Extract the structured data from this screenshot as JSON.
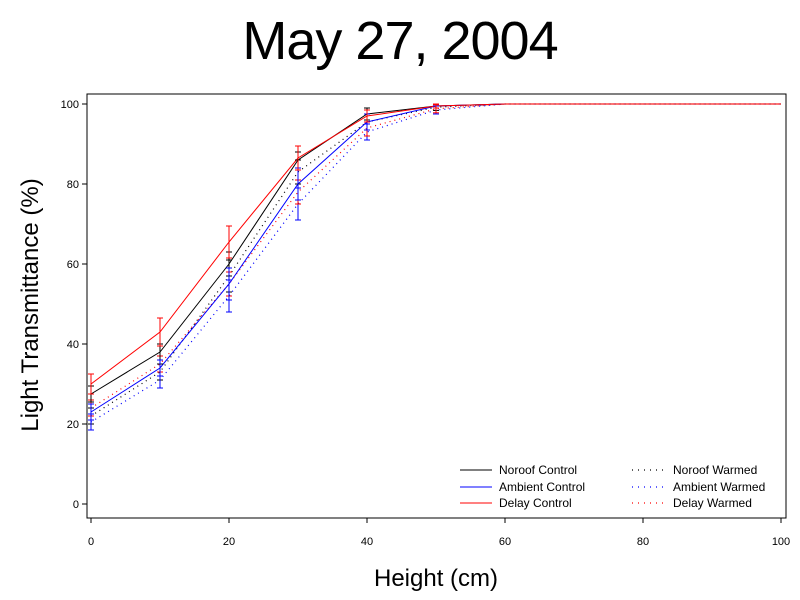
{
  "chart_data": {
    "type": "line",
    "title": "May 27, 2004",
    "xlabel": "Height (cm)",
    "ylabel": "Light Transmittance (%)",
    "xlim": [
      0,
      100
    ],
    "ylim": [
      0,
      100
    ],
    "xticks": [
      "0",
      "20",
      "40",
      "60",
      "80",
      "100"
    ],
    "yticks": [
      "0",
      "20",
      "40",
      "60",
      "80",
      "100"
    ],
    "grid": false,
    "legend_position": "bottom-right",
    "x": [
      0,
      10,
      20,
      30,
      40,
      50,
      60,
      70,
      80,
      90,
      100
    ],
    "series": [
      {
        "name": "Noroof Control",
        "color": "#000000",
        "style": "solid",
        "values": [
          27.5,
          38,
          60,
          86,
          97.5,
          99.5,
          100,
          100,
          100,
          100,
          100
        ],
        "error": [
          2,
          2,
          3,
          2,
          1.5,
          0.5,
          0,
          0,
          0,
          0,
          0
        ]
      },
      {
        "name": "Ambient Control",
        "color": "#0000ff",
        "style": "solid",
        "values": [
          23,
          34,
          55,
          80,
          95.5,
          99.5,
          100,
          100,
          100,
          100,
          100
        ],
        "error": [
          2,
          2,
          4,
          4,
          2,
          0.5,
          0,
          0,
          0,
          0,
          0
        ]
      },
      {
        "name": "Delay Control",
        "color": "#ff0000",
        "style": "solid",
        "values": [
          30,
          43,
          65.5,
          86.5,
          97,
          99.5,
          100,
          100,
          100,
          100,
          100
        ],
        "error": [
          2.5,
          3.5,
          4,
          3,
          1.5,
          0.5,
          0,
          0,
          0,
          0,
          0
        ]
      },
      {
        "name": "Noroof Warmed",
        "color": "#000000",
        "style": "dotted",
        "values": [
          22,
          33,
          57,
          83,
          95.5,
          99.2,
          100,
          100,
          100,
          100,
          100
        ],
        "error": [
          2,
          2,
          4,
          3,
          2,
          0.8,
          0,
          0,
          0,
          0,
          0
        ]
      },
      {
        "name": "Ambient Warmed",
        "color": "#0000ff",
        "style": "dotted",
        "values": [
          20.5,
          31,
          52,
          75,
          93,
          98.5,
          100,
          100,
          100,
          100,
          100
        ],
        "error": [
          2,
          2,
          4,
          4,
          2,
          1,
          0,
          0,
          0,
          0,
          0
        ]
      },
      {
        "name": "Delay Warmed",
        "color": "#ff0000",
        "style": "dotted",
        "values": [
          24,
          35,
          55,
          78,
          94,
          98.8,
          100,
          100,
          100,
          100,
          100
        ],
        "error": [
          2,
          2,
          3,
          3,
          2,
          1,
          0,
          0,
          0,
          0,
          0
        ]
      }
    ]
  }
}
